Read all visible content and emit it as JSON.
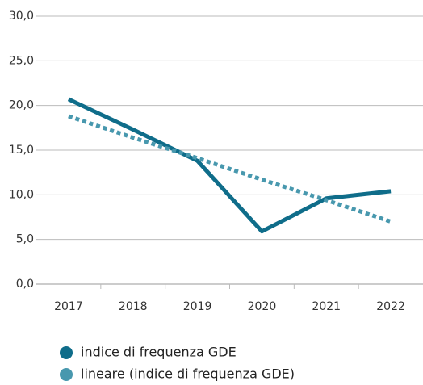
{
  "chart_data": {
    "type": "line",
    "categories": [
      "2017",
      "2018",
      "2019",
      "2020",
      "2021",
      "2022"
    ],
    "series": [
      {
        "name": "indice di frequenza GDE",
        "color": "#0f6d8a",
        "style": "solid",
        "values": [
          20.7,
          17.3,
          13.8,
          5.9,
          9.6,
          10.4
        ]
      },
      {
        "name": "lineare (indice di frequenza GDE)",
        "color": "#4898ae",
        "style": "dotted",
        "values": [
          18.8,
          16.4,
          14.1,
          11.7,
          9.4,
          7.0
        ]
      }
    ],
    "ylim": [
      0,
      30
    ],
    "yticks": [
      {
        "value": 0,
        "label": "0,0"
      },
      {
        "value": 5,
        "label": "5,0"
      },
      {
        "value": 10,
        "label": "10,0"
      },
      {
        "value": 15,
        "label": "15,0"
      },
      {
        "value": 20,
        "label": "20,0"
      },
      {
        "value": 25,
        "label": "25,0"
      },
      {
        "value": 30,
        "label": "30,0"
      }
    ],
    "grid": true
  }
}
